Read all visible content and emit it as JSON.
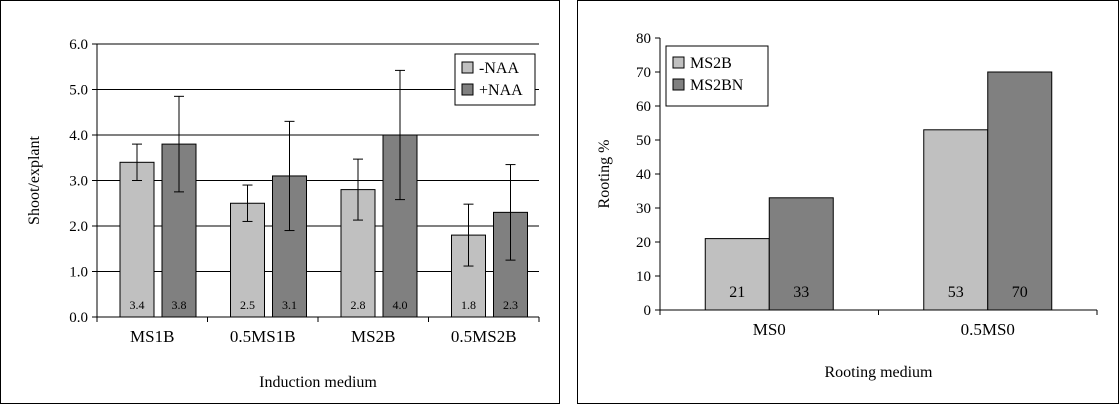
{
  "colors": {
    "light": "#c0c0c0",
    "dark": "#808080",
    "axis": "#000000",
    "grid": "#000000"
  },
  "chart_data": [
    {
      "type": "bar",
      "title": "",
      "xlabel": "Induction medium",
      "ylabel": "Shoot/explant",
      "categories": [
        "MS1B",
        "0.5MS1B",
        "MS2B",
        "0.5MS2B"
      ],
      "ylim": [
        0,
        6
      ],
      "yticks": [
        "0.0",
        "1.0",
        "2.0",
        "3.0",
        "4.0",
        "5.0",
        "6.0"
      ],
      "grid": true,
      "legend_position": "top-right",
      "series": [
        {
          "name": "-NAA",
          "values": [
            3.4,
            2.5,
            2.8,
            1.8
          ],
          "labels": [
            "3.4",
            "2.5",
            "2.8",
            "1.8"
          ],
          "errors": [
            0.4,
            0.4,
            0.67,
            0.68
          ],
          "color": "#c0c0c0"
        },
        {
          "name": "+NAA",
          "values": [
            3.8,
            3.1,
            4.0,
            2.3
          ],
          "labels": [
            "3.8",
            "3.1",
            "4.0",
            "2.3"
          ],
          "errors": [
            1.05,
            1.2,
            1.42,
            1.05
          ],
          "color": "#808080"
        }
      ]
    },
    {
      "type": "bar",
      "title": "",
      "xlabel": "Rooting medium",
      "ylabel": "Rooting %",
      "categories": [
        "MS0",
        "0.5MS0"
      ],
      "ylim": [
        0,
        80
      ],
      "yticks": [
        "0",
        "10",
        "20",
        "30",
        "40",
        "50",
        "60",
        "70",
        "80"
      ],
      "grid": false,
      "legend_position": "top-left",
      "series": [
        {
          "name": "MS2B",
          "values": [
            21,
            53
          ],
          "labels": [
            "21",
            "53"
          ],
          "color": "#c0c0c0"
        },
        {
          "name": "MS2BN",
          "values": [
            33,
            70
          ],
          "labels": [
            "33",
            "70"
          ],
          "color": "#808080"
        }
      ]
    }
  ]
}
